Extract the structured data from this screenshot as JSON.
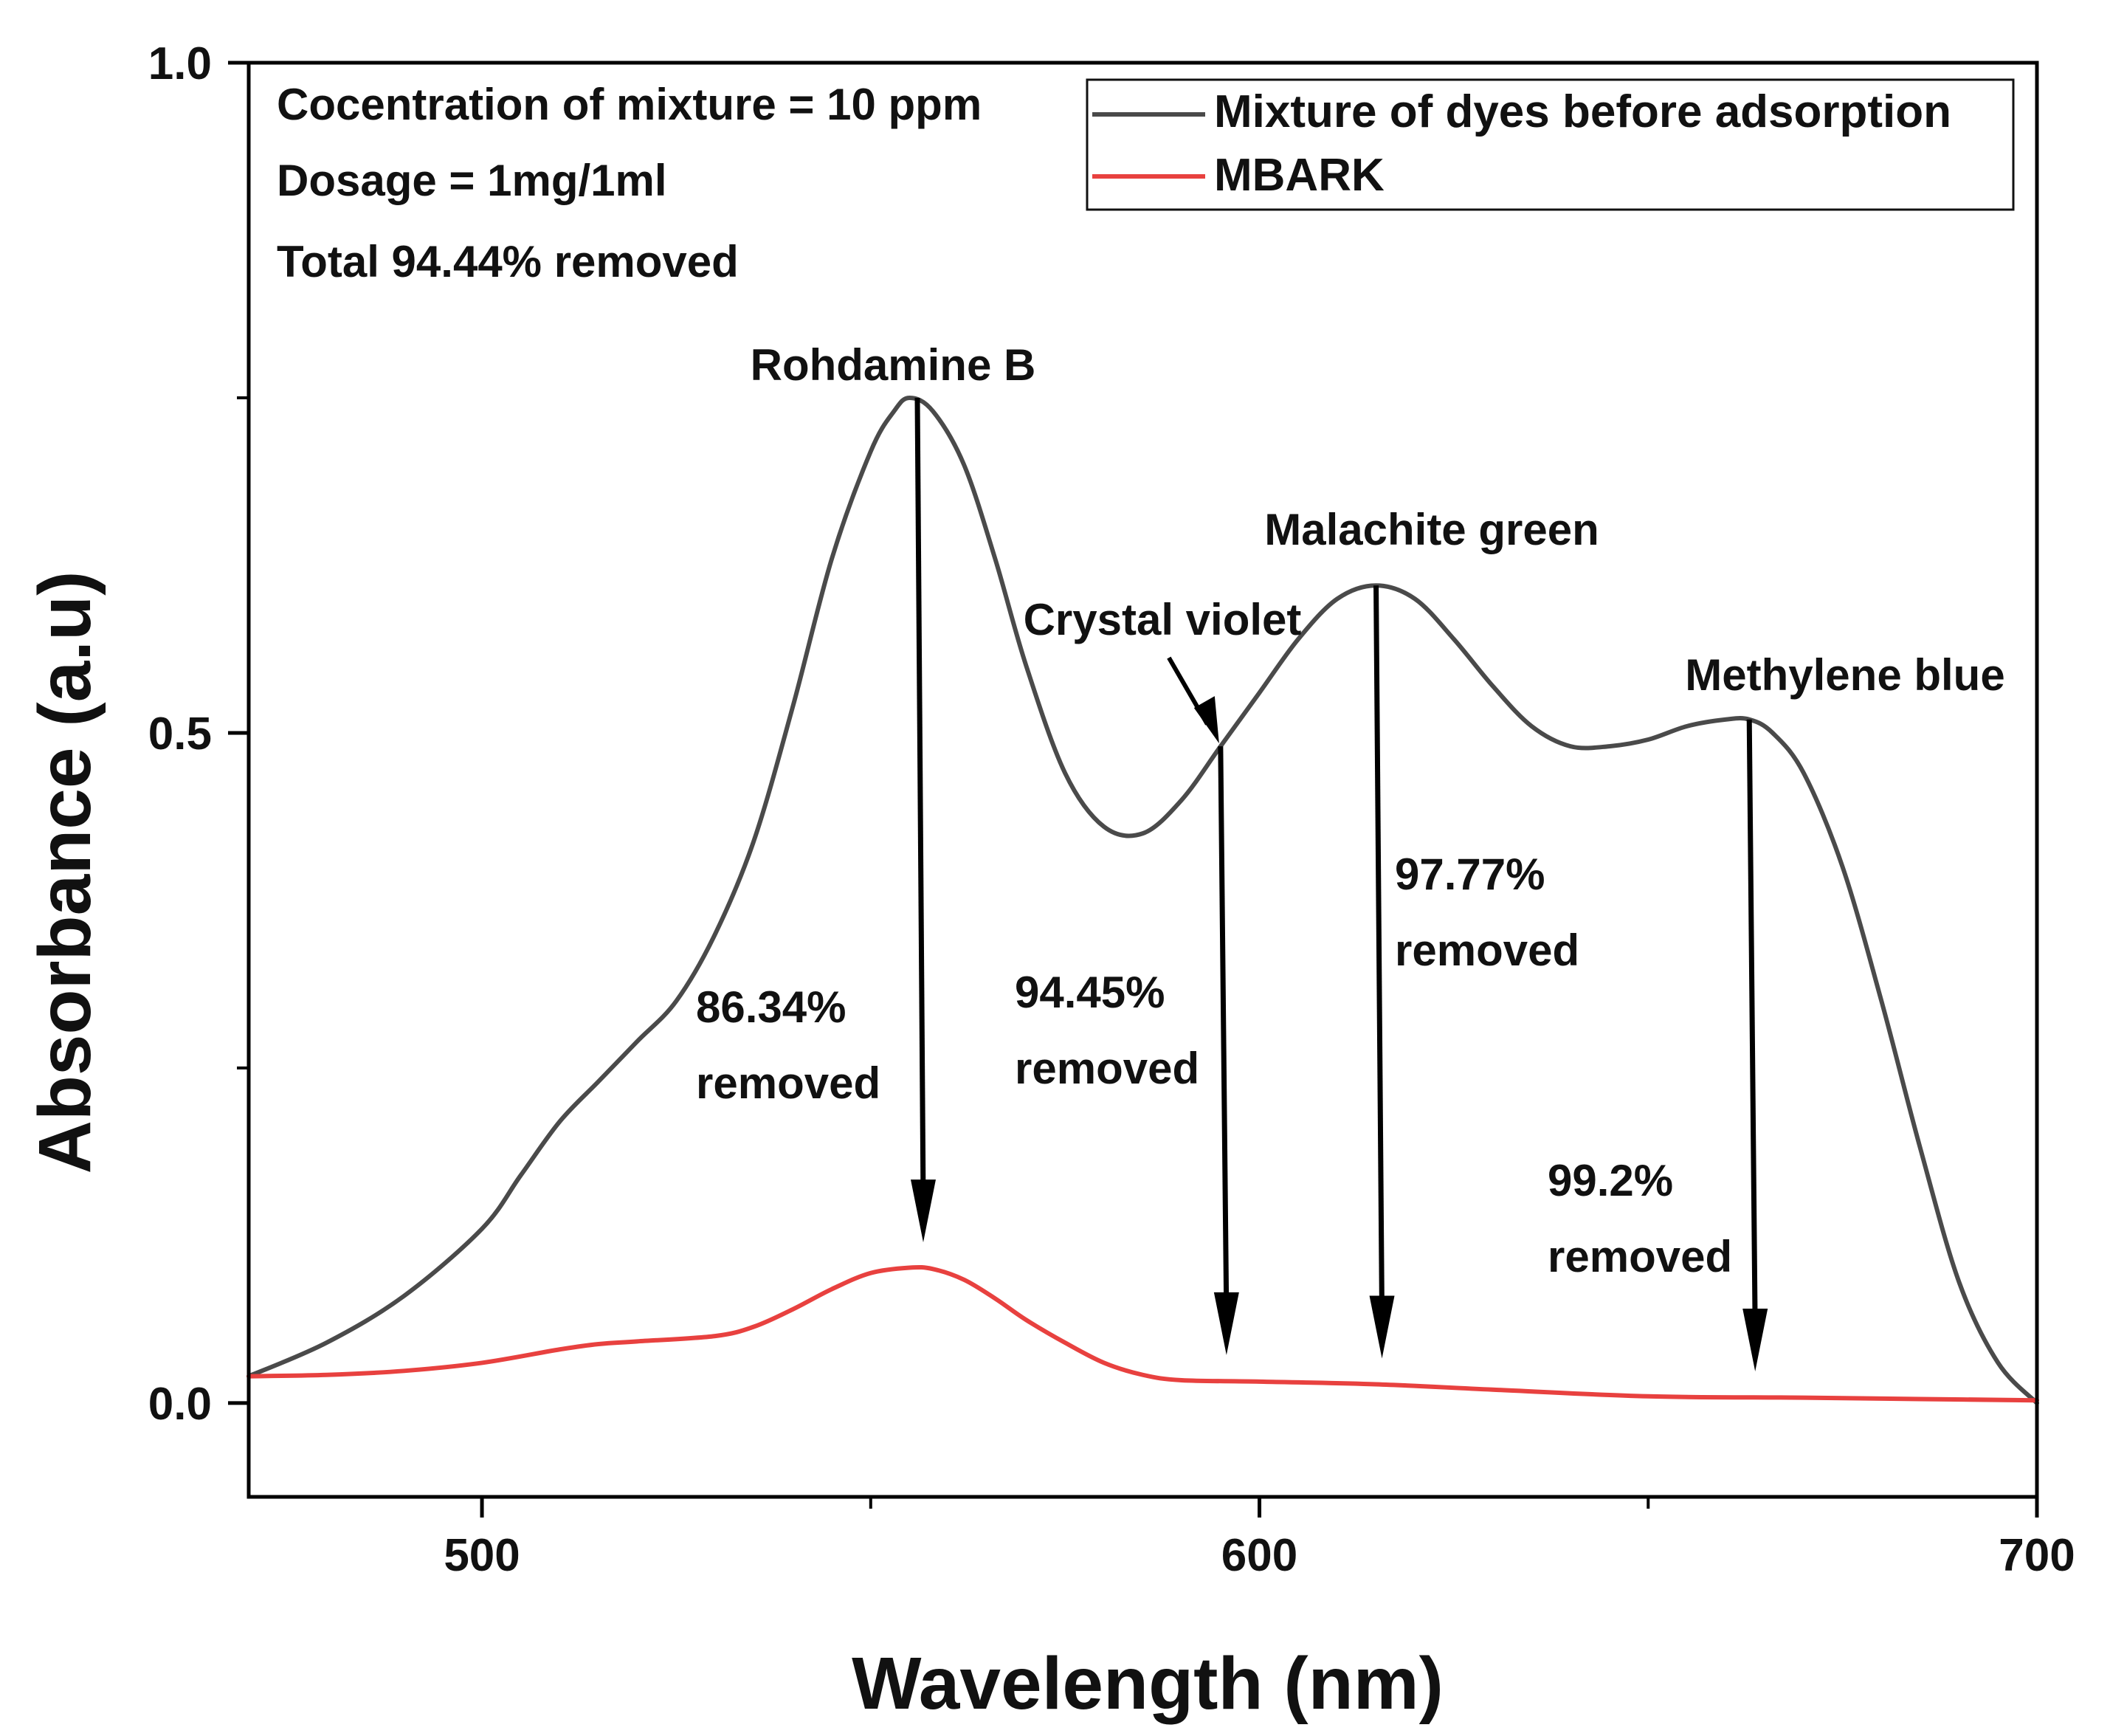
{
  "chart_data": {
    "type": "line",
    "title": "",
    "xlabel": "Wavelength (nm)",
    "ylabel": "Absorbance (a.u)",
    "xlim": [
      470,
      700
    ],
    "ylim": [
      -0.07,
      1.0
    ],
    "xticks": [
      500,
      600,
      700
    ],
    "xticks_minor": [
      550,
      650
    ],
    "yticks": [
      0.0,
      0.5,
      1.0
    ],
    "yticks_minor": [
      0.25,
      0.75
    ],
    "xtick_labels": [
      "500",
      "600",
      "700"
    ],
    "ytick_labels": [
      "0.0",
      "0.5",
      "1.0"
    ],
    "grid": false,
    "legend_position": "top-right",
    "series": [
      {
        "name": "Mixture of dyes before adsorption",
        "color": "#4a4a4a",
        "x": [
          470,
          480,
          490,
          500,
          505,
          510,
          515,
          520,
          525,
          530,
          535,
          540,
          545,
          550,
          553,
          555,
          558,
          562,
          566,
          570,
          575,
          580,
          585,
          590,
          595,
          600,
          605,
          610,
          615,
          620,
          625,
          630,
          635,
          640,
          645,
          650,
          655,
          660,
          663,
          666,
          670,
          675,
          680,
          685,
          690,
          695,
          700
        ],
        "y": [
          0.02,
          0.045,
          0.08,
          0.13,
          0.17,
          0.21,
          0.24,
          0.27,
          0.3,
          0.35,
          0.42,
          0.52,
          0.63,
          0.71,
          0.74,
          0.75,
          0.74,
          0.7,
          0.63,
          0.55,
          0.47,
          0.43,
          0.425,
          0.45,
          0.49,
          0.53,
          0.57,
          0.6,
          0.61,
          0.6,
          0.57,
          0.535,
          0.505,
          0.49,
          0.49,
          0.495,
          0.505,
          0.51,
          0.51,
          0.5,
          0.47,
          0.4,
          0.3,
          0.19,
          0.09,
          0.03,
          0.0
        ],
        "peak_annotations": [
          {
            "label": "Rohdamine B",
            "x": 556,
            "y": 0.75,
            "removal": "86.34%\nremoved"
          },
          {
            "label": "Crystal violet",
            "x": 595,
            "y": 0.49,
            "removal": "94.45%\nremoved"
          },
          {
            "label": "Malachite green",
            "x": 615,
            "y": 0.61,
            "removal": "97.77%\nremoved"
          },
          {
            "label": "Methylene blue",
            "x": 663,
            "y": 0.51,
            "removal": "99.2%\nremoved"
          }
        ]
      },
      {
        "name": "MBARK",
        "color": "#e8413f",
        "x": [
          470,
          480,
          490,
          500,
          510,
          515,
          520,
          530,
          535,
          540,
          545,
          550,
          555,
          558,
          562,
          566,
          570,
          575,
          580,
          585,
          590,
          600,
          615,
          630,
          650,
          670,
          685,
          700
        ],
        "y": [
          0.02,
          0.021,
          0.024,
          0.03,
          0.04,
          0.044,
          0.046,
          0.05,
          0.057,
          0.07,
          0.085,
          0.097,
          0.101,
          0.1,
          0.092,
          0.078,
          0.062,
          0.045,
          0.03,
          0.021,
          0.017,
          0.016,
          0.014,
          0.01,
          0.005,
          0.004,
          0.003,
          0.002
        ]
      }
    ],
    "annotations": [
      {
        "text": "Cocentration of mixture = 10 ppm"
      },
      {
        "text": "Dosage = 1mg/1ml"
      },
      {
        "text": "Total 94.44% removed"
      }
    ]
  }
}
